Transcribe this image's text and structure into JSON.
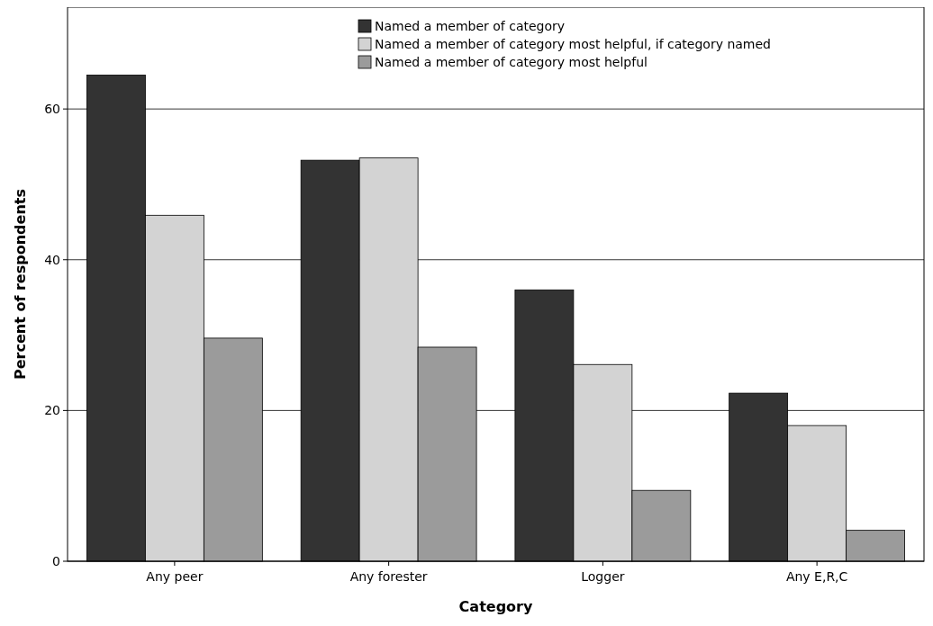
{
  "chart_data": {
    "type": "bar",
    "xlabel": "Category",
    "ylabel": "Percent of respondents",
    "categories": [
      "Any peer",
      "Any forester",
      "Logger",
      "Any E,R,C"
    ],
    "series": [
      {
        "name": "Named a member of category",
        "color": "#333333",
        "values": [
          64.5,
          53.2,
          36.0,
          22.3
        ]
      },
      {
        "name": "Named a member of category most helpful, if category named",
        "color": "#d3d3d3",
        "values": [
          45.9,
          53.5,
          26.1,
          18.0
        ]
      },
      {
        "name": "Named a member of category most helpful",
        "color": "#9b9b9b",
        "values": [
          29.6,
          28.4,
          9.4,
          4.1
        ]
      }
    ],
    "ylim": [
      0,
      73.5
    ],
    "yticks": [
      0,
      20,
      40,
      60
    ],
    "grid": "y",
    "legend": "top"
  }
}
